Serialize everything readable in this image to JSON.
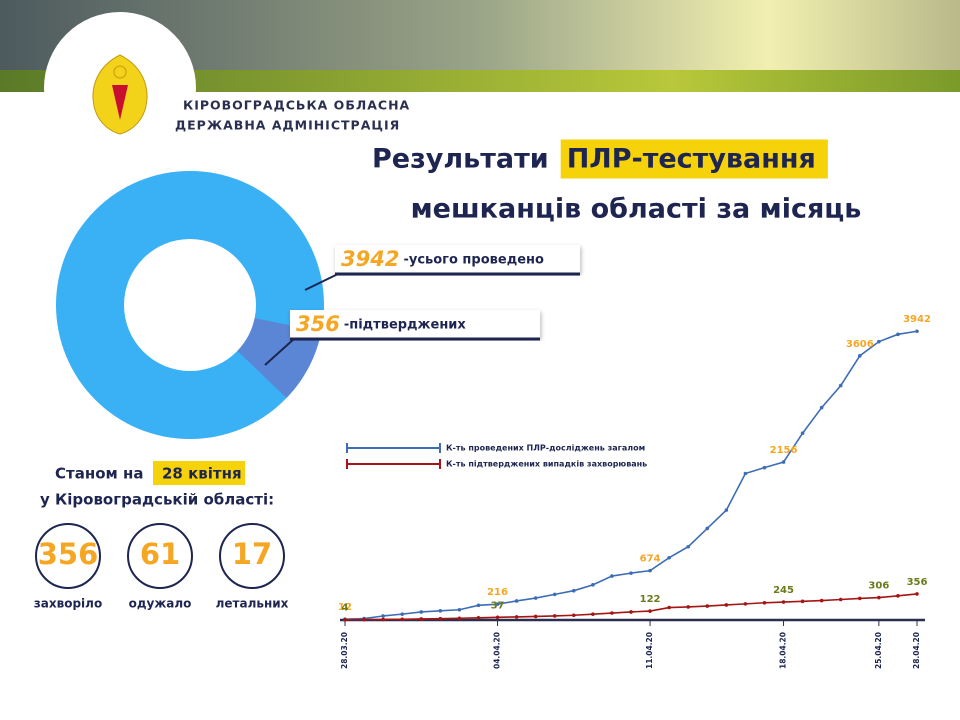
{
  "header": {
    "org_line1": "КІРОВОГРАДСЬКА ОБЛАСНА",
    "org_line2": "ДЕРЖАВНА АДМІНІСТРАЦІЯ"
  },
  "title": {
    "part1": "Результати",
    "highlight": "ПЛР-тестування",
    "line2": "мешканців області за місяць"
  },
  "status": {
    "prefix": "Станом на",
    "date": "28 квітня",
    "region": "у Кіровоградській області:"
  },
  "stats": [
    {
      "value": 356,
      "label": "захворіло"
    },
    {
      "value": 61,
      "label": "одужало"
    },
    {
      "value": 17,
      "label": "летальних"
    }
  ],
  "chart_data": [
    {
      "type": "donut",
      "categories": [
        "-усього проведено",
        "-підтверджених"
      ],
      "values": [
        3942,
        356
      ],
      "colors": [
        "#3ab0f5",
        "#5b86d6"
      ],
      "label_color": "#f5a623"
    },
    {
      "type": "line",
      "x": [
        "28.03.20",
        null,
        null,
        null,
        null,
        null,
        null,
        null,
        "04.04.20",
        null,
        null,
        null,
        null,
        null,
        null,
        null,
        "11.04.20",
        null,
        null,
        null,
        null,
        null,
        null,
        "18.04.20",
        null,
        null,
        null,
        null,
        "25.04.20",
        null,
        "28.04.20"
      ],
      "series": [
        {
          "name": "К-ть проведених ПЛР-досліджень загалом",
          "color": "#3d6db5",
          "label_color": "#f5a623",
          "values": [
            12,
            20,
            55,
            80,
            110,
            125,
            140,
            200,
            216,
            260,
            300,
            350,
            400,
            480,
            600,
            640,
            674,
            850,
            1000,
            1250,
            1500,
            2000,
            2080,
            2156,
            2550,
            2900,
            3200,
            3606,
            3800,
            3900,
            3942
          ],
          "value_labels": [
            "12",
            null,
            null,
            null,
            null,
            null,
            null,
            null,
            "216",
            null,
            null,
            null,
            null,
            null,
            null,
            null,
            "674",
            null,
            null,
            null,
            null,
            null,
            null,
            "2156",
            null,
            null,
            null,
            "3606",
            null,
            null,
            "3942"
          ]
        },
        {
          "name": "К-ть підтверджених випадків захворювань",
          "color": "#a51515",
          "label_color": "#6b7a1a",
          "values": [
            4,
            5,
            7,
            10,
            14,
            18,
            24,
            30,
            37,
            42,
            48,
            56,
            65,
            80,
            95,
            110,
            122,
            170,
            178,
            190,
            205,
            220,
            235,
            245,
            255,
            265,
            280,
            295,
            306,
            330,
            356
          ],
          "value_labels": [
            "4",
            null,
            null,
            null,
            null,
            null,
            null,
            null,
            "37",
            null,
            null,
            null,
            null,
            null,
            null,
            null,
            "122",
            null,
            null,
            null,
            null,
            null,
            null,
            "245",
            null,
            null,
            null,
            null,
            "306",
            null,
            "356"
          ]
        }
      ],
      "ylim": [
        0,
        4000
      ]
    }
  ]
}
